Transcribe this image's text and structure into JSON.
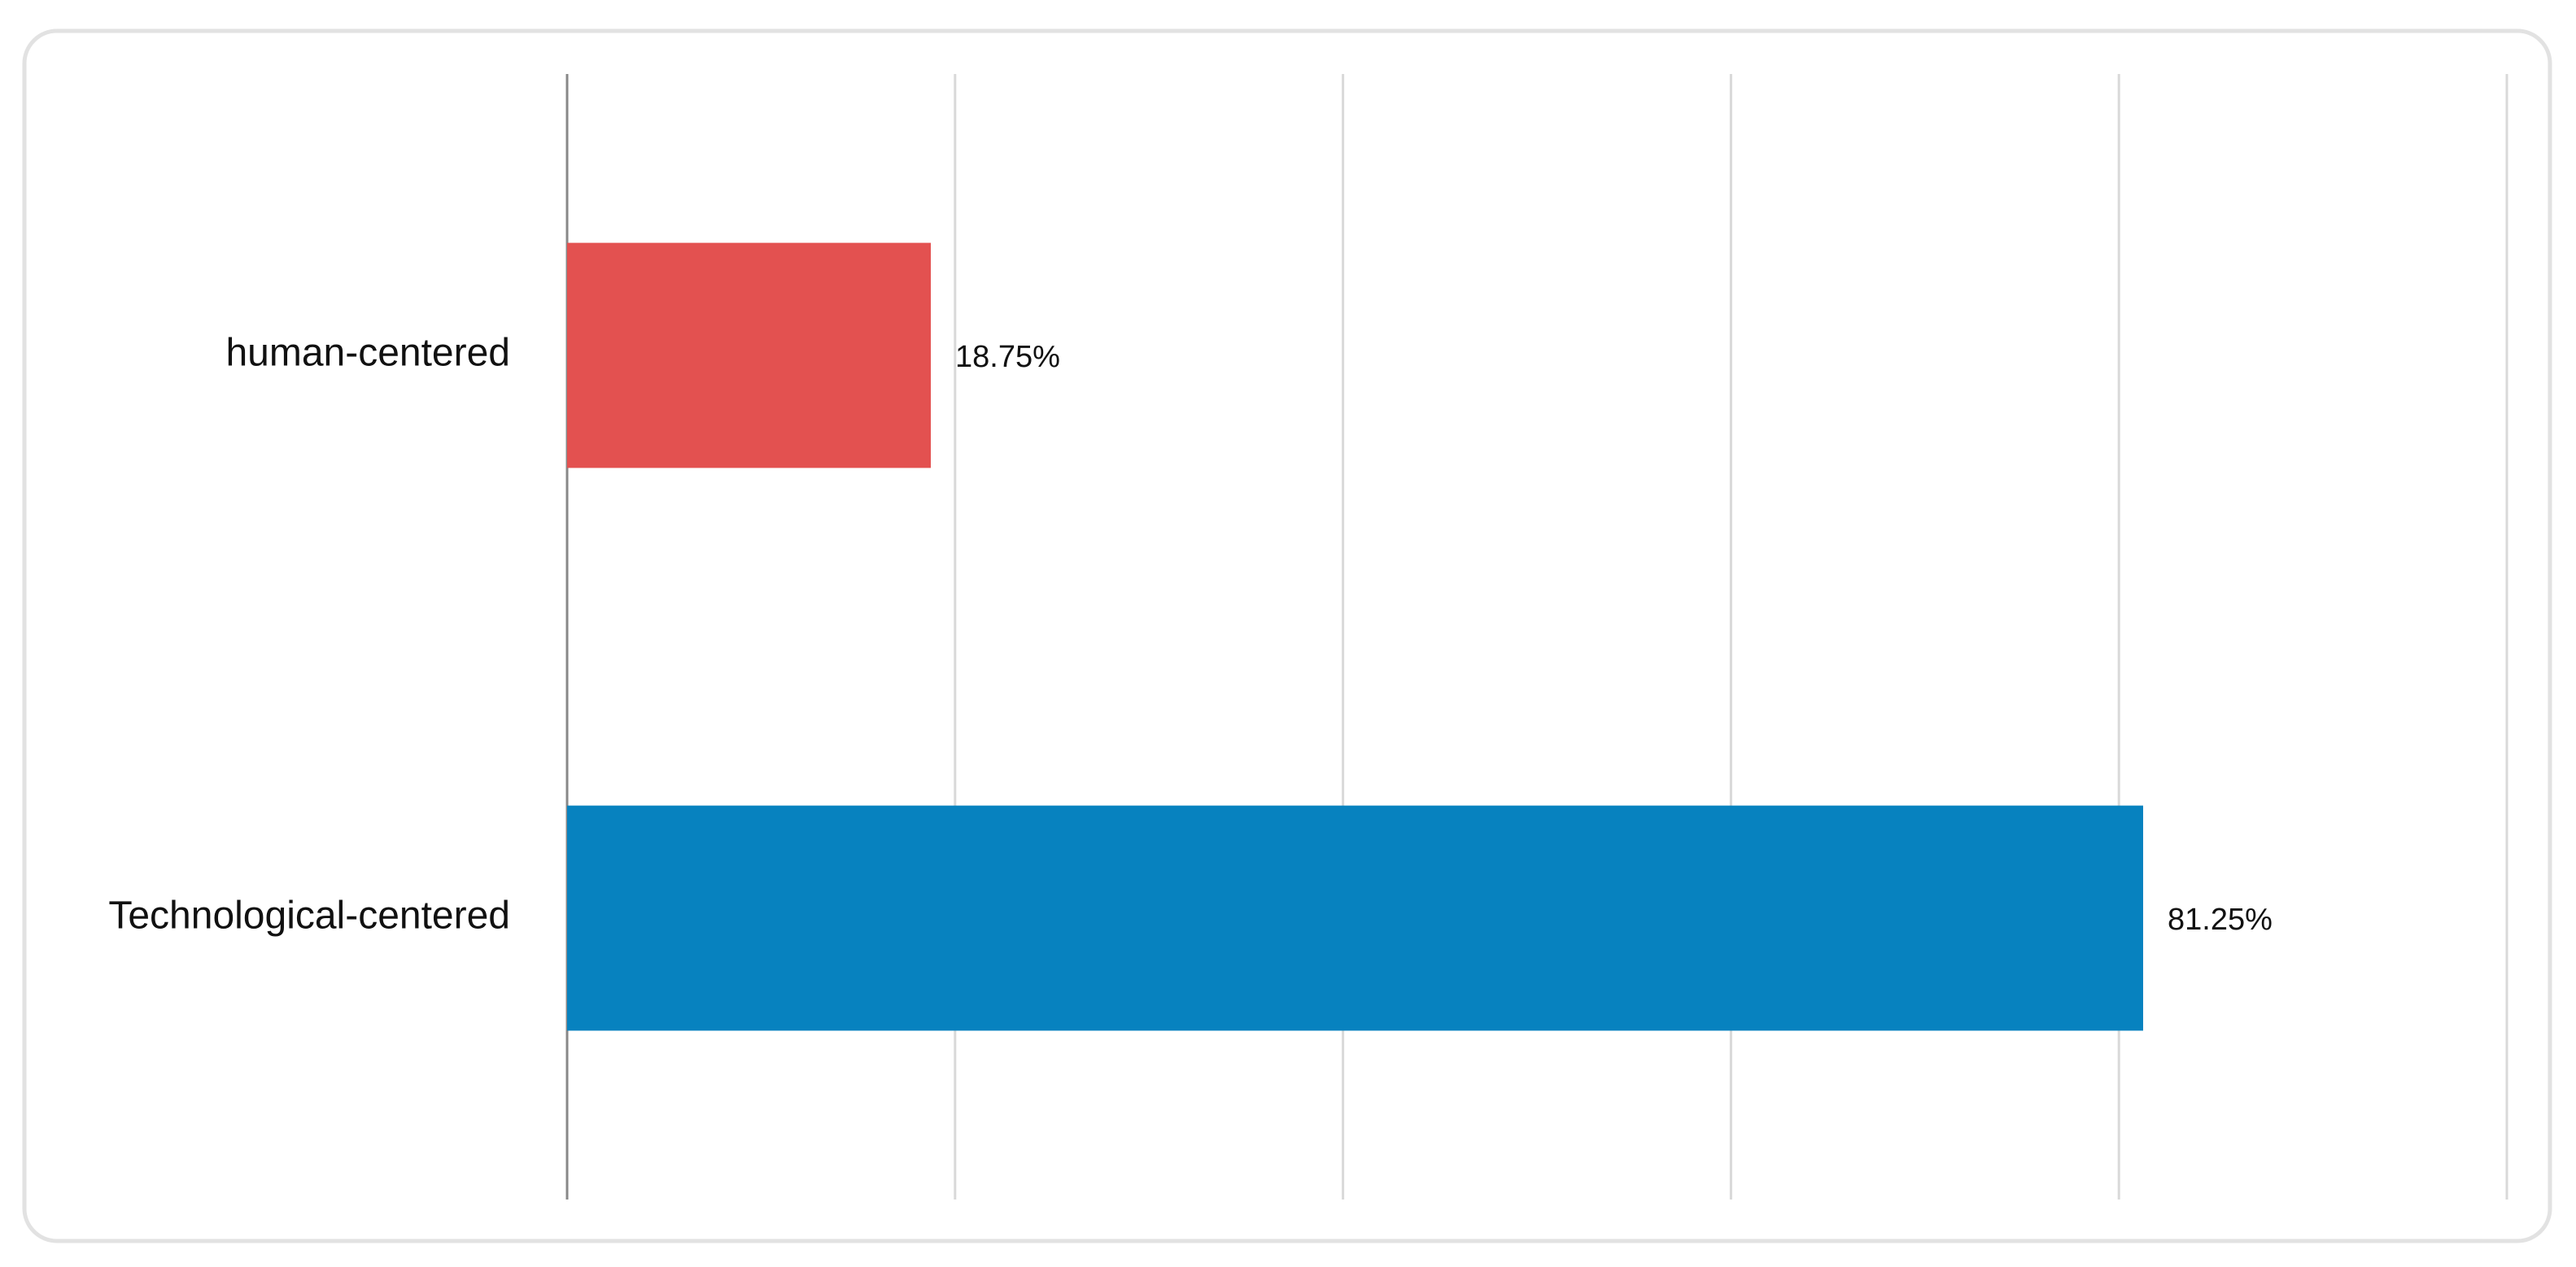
{
  "chart_data": {
    "type": "hbar",
    "categories": [
      "human-centered",
      "Technological-centered"
    ],
    "values": [
      18.75,
      81.25
    ],
    "value_labels": [
      "18.75%",
      "81.25%"
    ],
    "colors": [
      "#e35150",
      "#0782bf"
    ],
    "xlim": [
      0,
      100
    ],
    "xticks": [
      0,
      20,
      40,
      60,
      80,
      100
    ],
    "grid": true
  }
}
